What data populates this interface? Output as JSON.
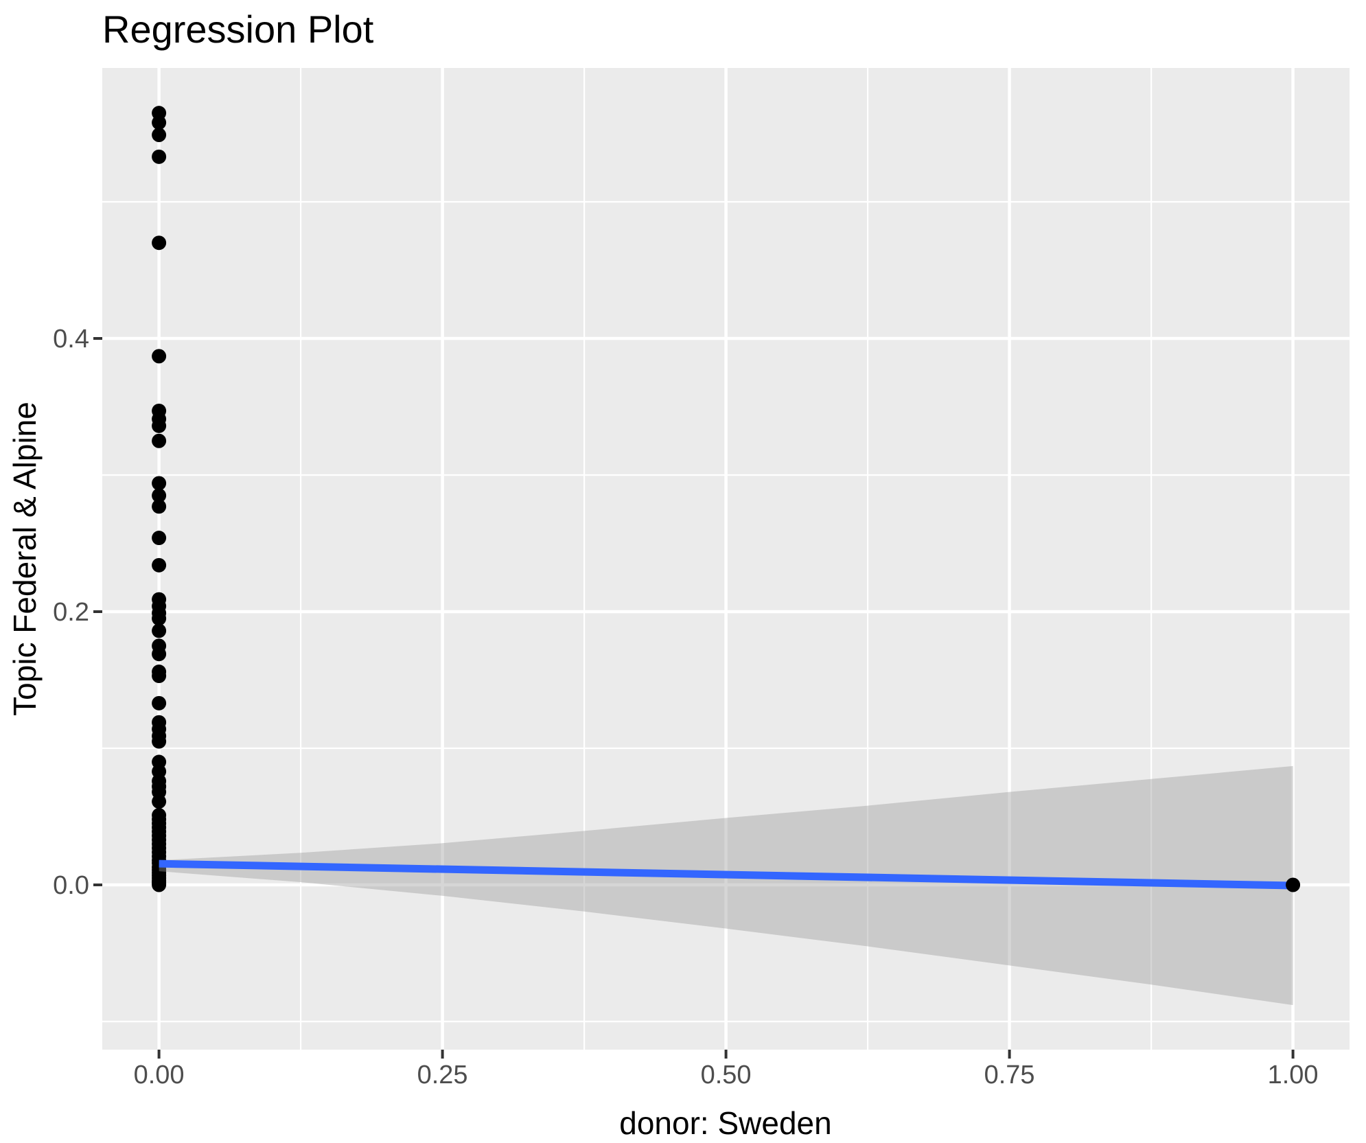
{
  "title": "Regression Plot",
  "chart_data": {
    "type": "scatter",
    "title": "Regression Plot",
    "xlabel": "donor: Sweden",
    "ylabel": "Topic Federal & Alpine",
    "xlim": [
      -0.05,
      1.05
    ],
    "ylim": [
      -0.121,
      0.598
    ],
    "grid": "on",
    "legend": "none",
    "x_axis": {
      "tick_values": [
        0.0,
        0.25,
        0.5,
        0.75,
        1.0
      ],
      "tick_labels": [
        "0.00",
        "0.25",
        "0.50",
        "0.75",
        "1.00"
      ],
      "minor_gridlines": [
        0.125,
        0.375,
        0.625,
        0.875
      ]
    },
    "y_axis": {
      "tick_values": [
        0.0,
        0.2,
        0.4
      ],
      "tick_labels": [
        "0.0",
        "0.2",
        "0.4"
      ],
      "minor_gridlines": [
        -0.1,
        0.1,
        0.3,
        0.5
      ]
    },
    "series": [
      {
        "name": "observations",
        "type": "points",
        "color": "#000000",
        "point_radius": 10.5,
        "points": [
          [
            0,
            0.565
          ],
          [
            0,
            0.558
          ],
          [
            0,
            0.549
          ],
          [
            0,
            0.533
          ],
          [
            0,
            0.47
          ],
          [
            0,
            0.387
          ],
          [
            0,
            0.347
          ],
          [
            0,
            0.341
          ],
          [
            0,
            0.336
          ],
          [
            0,
            0.325
          ],
          [
            0,
            0.294
          ],
          [
            0,
            0.285
          ],
          [
            0,
            0.277
          ],
          [
            0,
            0.254
          ],
          [
            0,
            0.234
          ],
          [
            0,
            0.209
          ],
          [
            0,
            0.204
          ],
          [
            0,
            0.199
          ],
          [
            0,
            0.195
          ],
          [
            0,
            0.186
          ],
          [
            0,
            0.175
          ],
          [
            0,
            0.169
          ],
          [
            0,
            0.156
          ],
          [
            0,
            0.153
          ],
          [
            0,
            0.133
          ],
          [
            0,
            0.119
          ],
          [
            0,
            0.114
          ],
          [
            0,
            0.109
          ],
          [
            0,
            0.105
          ],
          [
            0,
            0.09
          ],
          [
            0,
            0.083
          ],
          [
            0,
            0.076
          ],
          [
            0,
            0.072
          ],
          [
            0,
            0.068
          ],
          [
            0,
            0.061
          ],
          [
            0,
            0.051
          ],
          [
            0,
            0.048
          ],
          [
            0,
            0.045
          ],
          [
            0,
            0.042
          ],
          [
            0,
            0.039
          ],
          [
            0,
            0.036
          ],
          [
            0,
            0.033
          ],
          [
            0,
            0.03
          ],
          [
            0,
            0.027
          ],
          [
            0,
            0.024
          ],
          [
            0,
            0.021
          ],
          [
            0,
            0.018
          ],
          [
            0,
            0.016
          ],
          [
            0,
            0.013
          ],
          [
            0,
            0.011
          ],
          [
            0,
            0.009
          ],
          [
            0,
            0.007
          ],
          [
            0,
            0.005
          ],
          [
            0,
            0.003
          ],
          [
            0,
            0.002
          ],
          [
            0,
            0.001
          ],
          [
            0,
            0.0
          ],
          [
            1,
            0.0
          ]
        ]
      },
      {
        "name": "regression-fit",
        "type": "line",
        "color": "#3366FF",
        "line_width": 11,
        "x": [
          0,
          1
        ],
        "y": [
          0.0155,
          -0.0005
        ]
      },
      {
        "name": "confidence-band",
        "type": "area",
        "color": "#999999",
        "opacity": 0.4,
        "x": [
          0.0,
          0.125,
          0.25,
          0.375,
          0.5,
          0.625,
          0.75,
          0.875,
          1.0
        ],
        "upper": [
          0.018,
          0.0235,
          0.0305,
          0.0395,
          0.049,
          0.058,
          0.068,
          0.0775,
          0.087
        ],
        "lower": [
          0.01,
          0.002,
          -0.008,
          -0.0195,
          -0.032,
          -0.045,
          -0.059,
          -0.073,
          -0.088
        ]
      }
    ],
    "colors": {
      "panel_background": "#EBEBEB",
      "gridline": "#FFFFFF",
      "tick_text": "#4D4D4D",
      "tick_mark": "#333333",
      "title_text": "#000000",
      "fit_line": "#3366FF",
      "point": "#000000"
    }
  }
}
